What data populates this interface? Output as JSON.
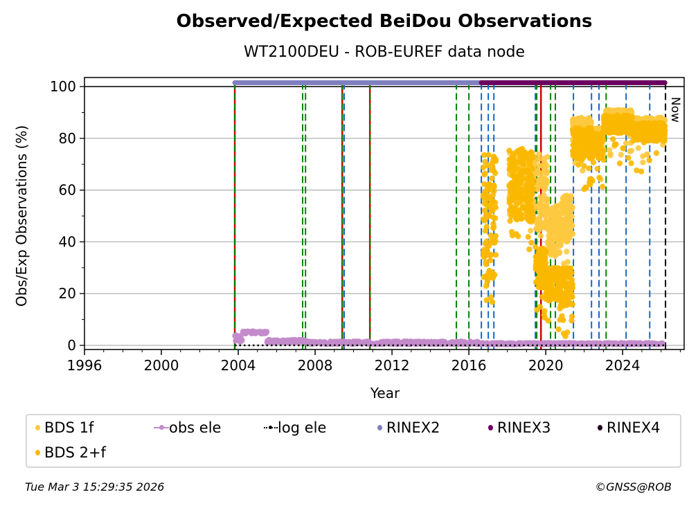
{
  "chart_data": {
    "type": "scatter",
    "title": "Observed/Expected BeiDou Observations",
    "subtitle": "WT2100DEU - ROB-EUREF data node",
    "xlabel": "Year",
    "ylabel": "Obs/Exp Observations (%)",
    "xlim": [
      1996,
      2027.2
    ],
    "ylim": [
      -1.6,
      103.5
    ],
    "xticks": [
      "1996",
      "2000",
      "2004",
      "2008",
      "2012",
      "2016",
      "2020",
      "2024"
    ],
    "yticks": [
      "0",
      "20",
      "40",
      "60",
      "80",
      "100"
    ],
    "grid": "horizontal",
    "now_label": "Now",
    "now_year": 2026.23,
    "reference_line": 100,
    "series": [
      {
        "name": "BDS 1f",
        "color": "#fdc93f",
        "envelopes": [
          [
            2018.1,
            2019.4,
            55,
            75
          ],
          [
            2019.5,
            2020.1,
            45,
            74
          ],
          [
            2020.1,
            2020.8,
            35,
            55
          ],
          [
            2020.8,
            2021.4,
            40,
            58
          ],
          [
            2021.4,
            2022.4,
            78,
            88
          ],
          [
            2022.4,
            2023.0,
            76,
            84
          ],
          [
            2023.0,
            2024.5,
            84,
            91
          ],
          [
            2024.5,
            2026.2,
            80,
            88
          ]
        ]
      },
      {
        "name": "BDS 2+f",
        "color": "#fbb800",
        "envelopes": [
          [
            2016.75,
            2017.4,
            25,
            75
          ],
          [
            2018.1,
            2019.35,
            48,
            76
          ],
          [
            2019.45,
            2020.0,
            22,
            38
          ],
          [
            2020.0,
            2020.8,
            17,
            30
          ],
          [
            2020.8,
            2021.4,
            15,
            30
          ],
          [
            2021.4,
            2022.4,
            72,
            84
          ],
          [
            2022.4,
            2023.0,
            72,
            82
          ],
          [
            2023.0,
            2024.5,
            82,
            89
          ],
          [
            2024.5,
            2026.2,
            79,
            86
          ]
        ]
      },
      {
        "name": "obs ele",
        "color": "#c38bcb",
        "envelopes": [
          [
            2003.82,
            2004.2,
            1,
            4
          ],
          [
            2004.2,
            2005.5,
            4.5,
            5.5
          ],
          [
            2005.5,
            2007.5,
            1,
            2.2
          ],
          [
            2007.5,
            2016.5,
            0.4,
            1.6
          ],
          [
            2016.5,
            2026.2,
            0.3,
            1.0
          ]
        ]
      },
      {
        "name": "log ele",
        "color": "#000000",
        "x": [
          2003.82,
          2026.2
        ],
        "y": [
          0,
          0
        ]
      },
      {
        "name": "RINEX2",
        "color": "#8080c0",
        "x": [
          2003.82,
          2016.65
        ],
        "y": [
          101.5,
          101.5
        ]
      },
      {
        "name": "RINEX3",
        "color": "#6b005f",
        "x": [
          2016.65,
          2026.2
        ],
        "y": [
          101.5,
          101.5
        ]
      },
      {
        "name": "RINEX4",
        "color": "#200018",
        "x": [],
        "y": []
      }
    ],
    "events": [
      {
        "year": 2003.82,
        "color": "#d00000",
        "style": "solid"
      },
      {
        "year": 2003.82,
        "color": "#008000",
        "style": "dashed"
      },
      {
        "year": 2007.35,
        "color": "#008000",
        "style": "dashed"
      },
      {
        "year": 2007.5,
        "color": "#008000",
        "style": "dashed"
      },
      {
        "year": 2009.41,
        "color": "#d00000",
        "style": "solid"
      },
      {
        "year": 2009.41,
        "color": "#008000",
        "style": "dashed"
      },
      {
        "year": 2009.51,
        "color": "#1565c0",
        "style": "dashed"
      },
      {
        "year": 2010.85,
        "color": "#d00000",
        "style": "solid"
      },
      {
        "year": 2010.85,
        "color": "#008000",
        "style": "dashed"
      },
      {
        "year": 2015.35,
        "color": "#008000",
        "style": "dashed"
      },
      {
        "year": 2016.0,
        "color": "#008000",
        "style": "dashed"
      },
      {
        "year": 2016.65,
        "color": "#1565c0",
        "style": "dashed"
      },
      {
        "year": 2017.01,
        "color": "#1565c0",
        "style": "dashed"
      },
      {
        "year": 2017.3,
        "color": "#1565c0",
        "style": "dashed"
      },
      {
        "year": 2019.46,
        "color": "#1565c0",
        "style": "dashed"
      },
      {
        "year": 2019.53,
        "color": "#008000",
        "style": "dashed"
      },
      {
        "year": 2019.75,
        "color": "#d00000",
        "style": "solid"
      },
      {
        "year": 2020.25,
        "color": "#008000",
        "style": "dashed"
      },
      {
        "year": 2020.5,
        "color": "#008000",
        "style": "dashed"
      },
      {
        "year": 2021.44,
        "color": "#1565c0",
        "style": "dashed"
      },
      {
        "year": 2022.38,
        "color": "#1565c0",
        "style": "dashed"
      },
      {
        "year": 2022.77,
        "color": "#1565c0",
        "style": "dashed"
      },
      {
        "year": 2023.14,
        "color": "#008000",
        "style": "dashed"
      },
      {
        "year": 2024.18,
        "color": "#1565c0",
        "style": "dashed"
      },
      {
        "year": 2025.41,
        "color": "#1565c0",
        "style": "dashed"
      },
      {
        "year": 2026.23,
        "color": "#000000",
        "style": "dashed"
      }
    ]
  },
  "legend": [
    "BDS 1f",
    "obs ele",
    "log ele",
    "RINEX2",
    "RINEX3",
    "RINEX4",
    "BDS 2+f"
  ],
  "footer": {
    "timestamp": "Tue Mar  3 15:29:35 2026",
    "copyright": "©GNSS@ROB"
  }
}
